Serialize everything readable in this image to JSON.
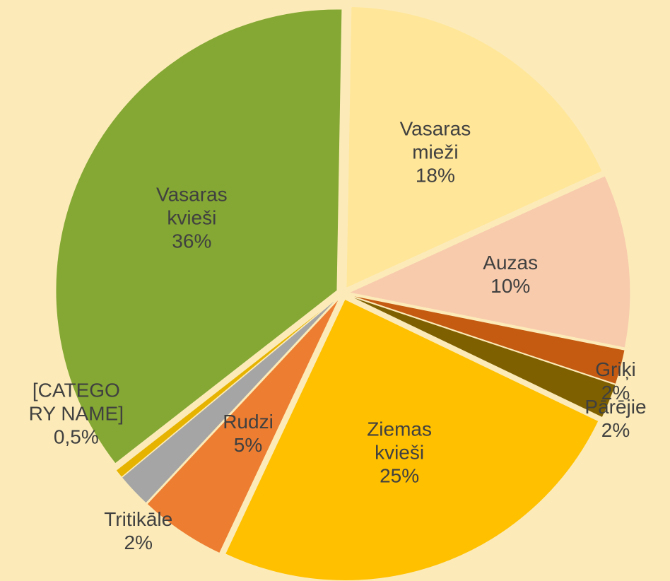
{
  "chart_data": {
    "type": "pie",
    "categories": [
      "Vasaras mieži",
      "Auzas",
      "Griķi",
      "Pārējie",
      "Ziemas kvieši",
      "Rudzi",
      "Tritikāle",
      "[CATEGORY NAME]",
      "Vasaras kvieši"
    ],
    "values": [
      18,
      10,
      2,
      2,
      25,
      5,
      2,
      0.5,
      36
    ],
    "value_labels": [
      "18%",
      "10%",
      "2%",
      "2%",
      "25%",
      "5%",
      "2%",
      "0,5%",
      "36%"
    ],
    "colors": [
      "#ffe699",
      "#f8cbad",
      "#c55a11",
      "#7f6000",
      "#ffc000",
      "#ed7d31",
      "#a5a5a5",
      "#e6b400",
      "#84a833"
    ]
  }
}
